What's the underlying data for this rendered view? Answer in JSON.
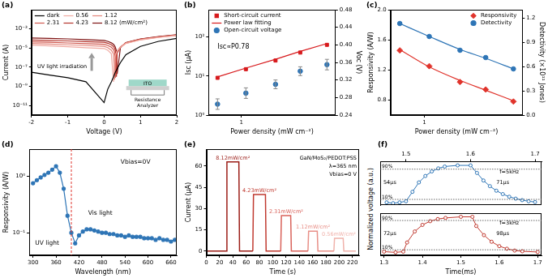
{
  "chart_data": [
    {
      "label": "(a)",
      "type": "line",
      "log": "y",
      "grid": false,
      "legend": "upper left",
      "x_label": "Voltage (V)",
      "y_label": "Current (A)",
      "xlim": [
        -2,
        2
      ],
      "xticks": [
        -2,
        -1,
        0,
        1,
        2
      ],
      "ylim": [
        1e-12,
        0.1
      ],
      "yticks": [
        {
          "value": 1e-11,
          "label": "10⁻¹¹"
        },
        {
          "value": 1e-09,
          "label": "10⁻⁹"
        },
        {
          "value": 1e-07,
          "label": "10⁻⁷"
        },
        {
          "value": 1e-05,
          "label": "10⁻⁵"
        },
        {
          "value": 0.001,
          "label": "10⁻³"
        }
      ],
      "x": [
        -2,
        -1.5,
        -1,
        -0.5,
        0,
        0.1,
        0.2,
        0.26,
        0.29,
        0.31,
        0.34,
        0.36,
        0.45,
        0.6,
        1,
        1.5,
        2
      ],
      "series": [
        {
          "name": "dark",
          "color": "#000000",
          "values": [
            3e-08,
            1.5e-08,
            8e-09,
            3e-09,
            2e-11,
            5e-10,
            3e-09,
            1e-08,
            2e-08,
            3e-08,
            5e-08,
            7e-08,
            3e-07,
            2e-06,
            1.5e-05,
            5e-05,
            0.0001
          ]
        },
        {
          "name": "0.56",
          "color": "#f0aaa2",
          "values": [
            2e-05,
            1.7e-05,
            1.4e-05,
            1.1e-05,
            9e-06,
            6e-06,
            2.5e-06,
            3e-09,
            1e-06,
            2e-06,
            3.5e-06,
            5e-06,
            1.2e-05,
            3e-05,
            7e-05,
            0.00013,
            0.0002
          ]
        },
        {
          "name": "1.12",
          "color": "#e3857b",
          "values": [
            3e-05,
            2.6e-05,
            2.2e-05,
            1.8e-05,
            1.5e-05,
            1.1e-05,
            6e-06,
            2.5e-06,
            5e-09,
            1.5e-06,
            3.5e-06,
            5e-06,
            1.3e-05,
            3.2e-05,
            7.5e-05,
            0.000135,
            0.00021
          ]
        },
        {
          "name": "2.31",
          "color": "#d0594f",
          "values": [
            4.5e-05,
            4e-05,
            3.4e-05,
            2.9e-05,
            2.5e-05,
            1.9e-05,
            1.2e-05,
            7e-06,
            3.5e-06,
            8e-09,
            2e-06,
            4e-06,
            1.3e-05,
            3.5e-05,
            8e-05,
            0.00014,
            0.00022
          ]
        },
        {
          "name": "4.23",
          "color": "#b5342c",
          "values": [
            7e-05,
            6.3e-05,
            5.5e-05,
            4.7e-05,
            4e-05,
            3.2e-05,
            2.2e-05,
            1.4e-05,
            9e-06,
            6e-06,
            1e-08,
            3e-06,
            1.2e-05,
            3.6e-05,
            8.5e-05,
            0.00015,
            0.00023
          ]
        },
        {
          "name": "8.12 (mW/cm²)",
          "color": "#7f1414",
          "values": [
            0.00011,
            0.0001,
            9e-05,
            7.5e-05,
            6.3e-05,
            5e-05,
            3.5e-05,
            2.4e-05,
            1.7e-05,
            1.2e-05,
            5e-06,
            2e-08,
            1.1e-05,
            3.7e-05,
            9e-05,
            0.00016,
            0.00024
          ]
        }
      ],
      "annotations": [
        "UV light irradiation"
      ],
      "inset_labels": [
        "ITO",
        "Resistance",
        "Analyzer"
      ]
    },
    {
      "label": "(b)",
      "type": "scatter",
      "log": true,
      "grid": false,
      "legend": "upper left",
      "x_label": "Power density (mW cm⁻²)",
      "y_label": "Isc (μA)",
      "y2_label": "Voc (V)",
      "xlim": [
        0.45,
        10
      ],
      "xticks": [
        1
      ],
      "ylim": [
        1,
        500
      ],
      "yticks": [
        {
          "value": 1,
          "label": "10⁰"
        },
        {
          "value": 10,
          "label": "10¹"
        },
        {
          "value": 100,
          "label": "10²"
        }
      ],
      "y2lim": [
        0.24,
        0.48
      ],
      "y2ticks": [
        0.24,
        0.28,
        0.32,
        0.36,
        {
          "value": 0.4,
          "label": "0.40"
        },
        0.44,
        0.48
      ],
      "x": [
        0.56,
        1.12,
        2.31,
        4.23,
        8.12
      ],
      "series": [
        {
          "name": "Short-circuit current",
          "type": "scatter",
          "marker": "square",
          "color": "#d7191c",
          "values": [
            9,
            15,
            25,
            40,
            63
          ]
        },
        {
          "name": "Power law fitting",
          "type": "line",
          "line_style": "solid",
          "color": "#d7191c",
          "values": [
            9.5,
            16,
            27,
            43,
            68
          ]
        },
        {
          "name": "Open-circuit voltage",
          "type": "scatter",
          "marker": "circle",
          "color": "#2e75b6",
          "axis": "y2",
          "values": [
            0.265,
            0.29,
            0.31,
            0.34,
            0.355
          ],
          "errors": [
            0.012,
            0.012,
            0.01,
            0.01,
            0.012
          ]
        }
      ],
      "annotations": [
        "Isc∝P0.78"
      ]
    },
    {
      "label": "(c)",
      "type": "scatter",
      "log": "x",
      "grid": false,
      "legend": "upper right",
      "x_label": "Power density (mW cm⁻²)",
      "y_label": "Responsivity (A/W)",
      "y2_label": "Detectivity (×10¹¹ Jones)",
      "xlim": [
        0.45,
        10
      ],
      "xticks": [
        1
      ],
      "ylim": [
        0.6,
        2.0
      ],
      "yticks": [
        0.8,
        1.2,
        1.6,
        {
          "value": 2,
          "label": "2.0"
        }
      ],
      "y2lim": [
        0,
        1.3
      ],
      "y2ticks": [
        {
          "value": 0,
          "label": "0.0"
        },
        0.3,
        0.6,
        0.9,
        1.2
      ],
      "x": [
        0.56,
        1.12,
        2.31,
        4.23,
        8.12
      ],
      "series": [
        {
          "name": "Responsivity",
          "marker": "diamond",
          "color": "#e0342c",
          "values": [
            1.46,
            1.25,
            1.04,
            0.94,
            0.78
          ],
          "fit": [
            1.47,
            1.24,
            1.06,
            0.93,
            0.79
          ]
        },
        {
          "name": "Detectivity",
          "marker": "circle",
          "color": "#2e75b6",
          "axis": "y2",
          "values": [
            1.13,
            0.97,
            0.8,
            0.71,
            0.57
          ],
          "fit": [
            1.13,
            0.97,
            0.81,
            0.7,
            0.57
          ]
        }
      ]
    },
    {
      "label": "(d)",
      "type": "line",
      "log": "y",
      "grid": false,
      "marker": "circle",
      "x_label": "Wavelength (nm)",
      "y_label": "Responsivity (A/W)",
      "xlim": [
        290,
        675
      ],
      "xticks": [
        300,
        360,
        420,
        480,
        540,
        600,
        660
      ],
      "ylim": [
        0.04,
        3
      ],
      "yticks": [
        {
          "value": 0.1,
          "label": "10⁻¹"
        },
        {
          "value": 1,
          "label": "10⁰"
        }
      ],
      "x": [
        300,
        310,
        320,
        330,
        340,
        350,
        360,
        370,
        380,
        390,
        400,
        410,
        420,
        430,
        440,
        450,
        460,
        470,
        480,
        490,
        500,
        510,
        520,
        530,
        540,
        550,
        560,
        570,
        580,
        590,
        600,
        610,
        620,
        630,
        640,
        650,
        660,
        670
      ],
      "series": [
        {
          "name": "Responsivity",
          "color": "#2e75b6",
          "values": [
            0.75,
            0.85,
            0.95,
            1.05,
            1.15,
            1.3,
            1.5,
            1.15,
            0.6,
            0.2,
            0.1,
            0.065,
            0.09,
            0.105,
            0.115,
            0.115,
            0.11,
            0.105,
            0.1,
            0.1,
            0.095,
            0.095,
            0.09,
            0.09,
            0.085,
            0.09,
            0.085,
            0.085,
            0.085,
            0.08,
            0.08,
            0.08,
            0.075,
            0.08,
            0.075,
            0.075,
            0.07,
            0.075
          ]
        }
      ],
      "vline": {
        "value": 400,
        "color": "#e0342c",
        "line_style": "dashed"
      },
      "annotations": [
        "UV light",
        "Vis light",
        "Vbias=0V"
      ]
    },
    {
      "label": "(e)",
      "type": "line",
      "grid": false,
      "x_label": "Time (s)",
      "y_label": "Current (μA)",
      "xlim": [
        0,
        230
      ],
      "xticks": [
        0,
        20,
        40,
        60,
        80,
        100,
        120,
        140,
        160,
        180,
        200,
        220
      ],
      "ylim": [
        -3,
        72
      ],
      "yticks": [
        0,
        15,
        30,
        45,
        60
      ],
      "pulses": [
        {
          "label": "8.12mW/cm²",
          "color": "#9b1c16",
          "x": [
            0,
            30,
            31,
            49,
            50,
            70
          ],
          "values": [
            0,
            0,
            63,
            63,
            0,
            0
          ]
        },
        {
          "label": "4.23mW/cm²",
          "color": "#c0392f",
          "x": [
            70,
            71,
            89,
            90,
            112
          ],
          "values": [
            0,
            40,
            40,
            0,
            0
          ]
        },
        {
          "label": "2.31mW/cm²",
          "color": "#d9625a",
          "x": [
            112,
            113,
            127,
            128,
            153
          ],
          "values": [
            0,
            25,
            25,
            0,
            0
          ]
        },
        {
          "label": "1.12mW/cm²",
          "color": "#e88f87",
          "x": [
            153,
            154,
            167,
            168,
            192
          ],
          "values": [
            0,
            14,
            14,
            0,
            0
          ]
        },
        {
          "label": "0.56mW/cm²",
          "color": "#f0b2ab",
          "x": [
            192,
            193,
            206,
            207,
            225
          ],
          "values": [
            0,
            9,
            9,
            0,
            0
          ]
        }
      ],
      "annotations": [
        "GaN/MoS₂/PEDOT:PSS",
        "λ=365 nm",
        "Vbias=0 V"
      ]
    },
    {
      "label": "(f)",
      "type": "line",
      "grid": false,
      "tick_labels": "x",
      "marker": "circle",
      "x_label": "Time(ms)",
      "y_label": "Normalized voltage (a.u.)",
      "hlines": [
        {
          "value": 0.9,
          "label": "90%"
        },
        {
          "value": 0.1,
          "label": "10%"
        }
      ],
      "panels": [
        {
          "title": "f=5kHz",
          "color": "#2e75b6",
          "xlim": [
            1.46,
            1.71
          ],
          "xticks": [
            1.5,
            1.6,
            1.7
          ],
          "ylim": [
            -0.05,
            1.1
          ],
          "x": [
            1.47,
            1.48,
            1.49,
            1.5,
            1.51,
            1.52,
            1.53,
            1.54,
            1.55,
            1.56,
            1.58,
            1.6,
            1.61,
            1.62,
            1.63,
            1.64,
            1.65,
            1.66,
            1.67,
            1.68,
            1.69,
            1.7
          ],
          "values": [
            0.02,
            0,
            0.02,
            0.05,
            0.3,
            0.55,
            0.72,
            0.84,
            0.92,
            0.97,
            1,
            1,
            0.8,
            0.6,
            0.45,
            0.33,
            0.24,
            0.17,
            0.12,
            0.08,
            0.05,
            0.03
          ],
          "annotations": [
            "54μs",
            "71μs"
          ]
        },
        {
          "title": "f=3kHz",
          "color": "#c0392f",
          "xlim": [
            1.29,
            1.71
          ],
          "xticks": [
            1.3,
            1.4,
            1.5,
            1.6,
            1.7
          ],
          "ylim": [
            -0.05,
            1.1
          ],
          "x": [
            1.3,
            1.33,
            1.35,
            1.36,
            1.38,
            1.4,
            1.42,
            1.44,
            1.46,
            1.5,
            1.53,
            1.54,
            1.56,
            1.58,
            1.6,
            1.62,
            1.64,
            1.66,
            1.7
          ],
          "values": [
            0.05,
            0.03,
            0.05,
            0.3,
            0.6,
            0.78,
            0.88,
            0.94,
            0.97,
            1,
            1,
            0.75,
            0.5,
            0.32,
            0.2,
            0.13,
            0.08,
            0.06,
            0.04
          ],
          "annotations": [
            "72μs",
            "98μs"
          ]
        }
      ]
    }
  ]
}
